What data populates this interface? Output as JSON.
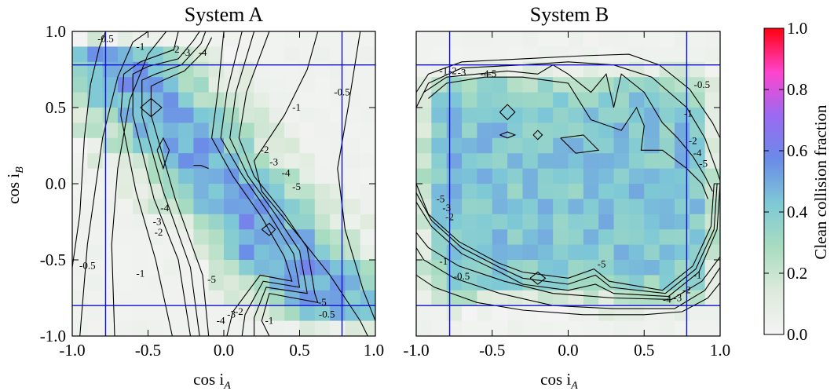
{
  "chart_data": {
    "type": "heatmap",
    "colorbar": {
      "label": "Clean collision fraction",
      "range": [
        0.0,
        1.0
      ],
      "ticks": [
        "0.0",
        "0.2",
        "0.4",
        "0.6",
        "0.8",
        "1.0"
      ],
      "colors": [
        "#f4f4f4",
        "#ddeadb",
        "#a8dcc0",
        "#7ec9d6",
        "#6a8be8",
        "#9b6af2",
        "#ff44cc",
        "#ff0010"
      ]
    },
    "shared_axes": {
      "xlabel_main": "cos i",
      "xlabel_sub": "A",
      "ylabel_main": "cos i",
      "ylabel_sub": "B",
      "x_ticks": [
        "-1.0",
        "-0.5",
        "0.0",
        "0.5",
        "1.0"
      ],
      "y_ticks": [
        "-1.0",
        "-0.5",
        "0.0",
        "0.5",
        "1.0"
      ],
      "xlim": [
        -1.0,
        1.0
      ],
      "ylim": [
        -1.0,
        1.0
      ]
    },
    "reference_lines": {
      "vertical_x": [
        -0.78,
        0.78
      ],
      "horizontal_y": [
        -0.8,
        0.78
      ],
      "color": "#1010cc"
    },
    "panels": [
      {
        "title": "System A",
        "contour_labels": [
          {
            "text": "-0.5",
            "x": -0.78,
            "y": 0.93
          },
          {
            "text": "-1",
            "x": -0.55,
            "y": 0.88
          },
          {
            "text": "-2",
            "x": -0.32,
            "y": 0.86
          },
          {
            "text": "-3",
            "x": -0.25,
            "y": 0.84
          },
          {
            "text": "-4",
            "x": -0.14,
            "y": 0.84
          },
          {
            "text": "-0.5",
            "x": 0.78,
            "y": 0.58
          },
          {
            "text": "-1",
            "x": 0.48,
            "y": 0.48
          },
          {
            "text": "-2",
            "x": 0.27,
            "y": 0.2
          },
          {
            "text": "-3",
            "x": 0.33,
            "y": 0.12
          },
          {
            "text": "-4",
            "x": 0.41,
            "y": 0.05
          },
          {
            "text": "-5",
            "x": 0.48,
            "y": -0.04
          },
          {
            "text": "-4",
            "x": -0.39,
            "y": -0.18
          },
          {
            "text": "-3",
            "x": -0.44,
            "y": -0.27
          },
          {
            "text": "-2",
            "x": -0.43,
            "y": -0.34
          },
          {
            "text": "-0.5",
            "x": -0.9,
            "y": -0.56
          },
          {
            "text": "-1",
            "x": -0.55,
            "y": -0.61
          },
          {
            "text": "-5",
            "x": -0.08,
            "y": -0.65
          },
          {
            "text": "-4",
            "x": -0.02,
            "y": -0.92
          },
          {
            "text": "-3",
            "x": 0.05,
            "y": -0.88
          },
          {
            "text": "-2",
            "x": 0.1,
            "y": -0.86
          },
          {
            "text": "-1",
            "x": 0.3,
            "y": -0.92
          },
          {
            "text": "-5",
            "x": 0.65,
            "y": -0.8
          },
          {
            "text": "-0.5",
            "x": 0.68,
            "y": -0.88
          }
        ]
      },
      {
        "title": "System B",
        "contour_labels": [
          {
            "text": "-1",
            "x": -0.82,
            "y": 0.72
          },
          {
            "text": "-2",
            "x": -0.76,
            "y": 0.72
          },
          {
            "text": "-3",
            "x": -0.7,
            "y": 0.71
          },
          {
            "text": "-4",
            "x": -0.55,
            "y": 0.7
          },
          {
            "text": "-5",
            "x": -0.5,
            "y": 0.7
          },
          {
            "text": "-0.5",
            "x": 0.88,
            "y": 0.63
          },
          {
            "text": "-1",
            "x": 0.79,
            "y": 0.44
          },
          {
            "text": "-2",
            "x": 0.82,
            "y": 0.26
          },
          {
            "text": "-4",
            "x": 0.85,
            "y": 0.18
          },
          {
            "text": "-5",
            "x": 0.89,
            "y": 0.11
          },
          {
            "text": "-5",
            "x": -0.84,
            "y": -0.12
          },
          {
            "text": "-3",
            "x": -0.8,
            "y": -0.18
          },
          {
            "text": "-2",
            "x": -0.78,
            "y": -0.24
          },
          {
            "text": "-1",
            "x": -0.82,
            "y": -0.53
          },
          {
            "text": "-0.5",
            "x": -0.7,
            "y": -0.63
          },
          {
            "text": "-5",
            "x": 0.22,
            "y": -0.55
          },
          {
            "text": "-4",
            "x": 0.65,
            "y": -0.78
          },
          {
            "text": "-3",
            "x": 0.72,
            "y": -0.77
          },
          {
            "text": "-2",
            "x": 0.78,
            "y": -0.72
          },
          {
            "text": "-1",
            "x": 0.85,
            "y": -0.62
          }
        ]
      }
    ]
  }
}
